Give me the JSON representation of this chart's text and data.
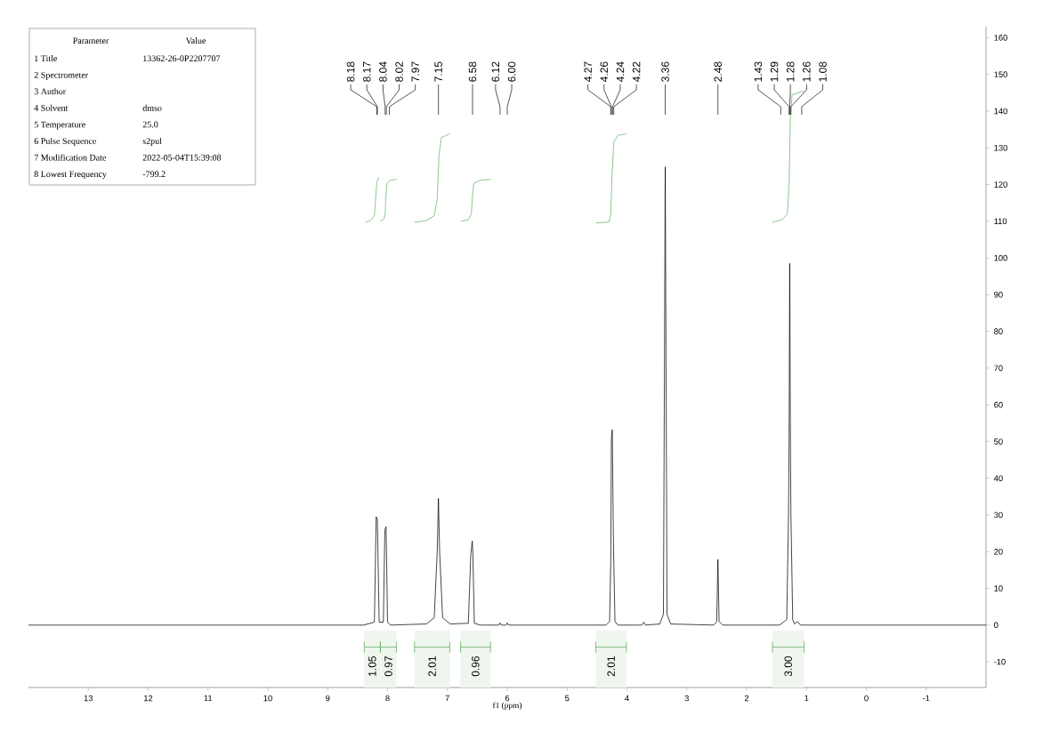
{
  "chart_data": [
    {
      "type": "other",
      "annotations": [
        "Parameter",
        "Value"
      ],
      "categories": [
        "1 Title",
        "2 Spectrometer",
        "3 Author",
        "4 Solvent",
        "5 Temperature",
        "6 Pulse Sequence",
        "7 Modification Date",
        "8 Lowest Frequency"
      ],
      "value_labels": [
        "13362-26-0P2207707",
        null,
        null,
        "dmso",
        "25.0",
        "s2pul",
        "2022-05-04T15:39:08",
        "-799.2"
      ]
    },
    {
      "type": "line",
      "xlabel": "f1 (ppm)",
      "xlim": [
        14,
        -2
      ],
      "ylim": [
        -17,
        163
      ],
      "xticks": [
        13,
        12,
        11,
        10,
        9,
        8,
        7,
        6,
        5,
        4,
        3,
        2,
        1,
        0,
        -1
      ],
      "yticks": [
        -10,
        0,
        10,
        20,
        30,
        40,
        50,
        60,
        70,
        80,
        90,
        100,
        110,
        120,
        130,
        140,
        150,
        160
      ],
      "series": [
        {
          "color": "#000000",
          "x": [
            14,
            8.4,
            8.22,
            8.19,
            8.17,
            8.14,
            8.07,
            8.045,
            8.025,
            8.0,
            7.95,
            7.35,
            7.22,
            7.17,
            7.15,
            7.13,
            7.08,
            6.95,
            6.65,
            6.61,
            6.585,
            6.575,
            6.55,
            6.45,
            6.14,
            6.12,
            6.1,
            6.02,
            6.0,
            5.98,
            4.35,
            4.29,
            4.27,
            4.26,
            4.245,
            4.225,
            4.2,
            4.15,
            3.75,
            3.72,
            3.69,
            3.45,
            3.39,
            3.36,
            3.33,
            3.27,
            2.55,
            2.5,
            2.48,
            2.46,
            2.4,
            1.45,
            1.33,
            1.3,
            1.29,
            1.28,
            1.27,
            1.26,
            1.23,
            1.2,
            1.15,
            1.1,
            -2
          ],
          "values": [
            0,
            0,
            0.8,
            29.5,
            28.8,
            0.8,
            0.8,
            26,
            26.8,
            0.8,
            0,
            0.3,
            2,
            20,
            34.5,
            20,
            2,
            0.3,
            0.5,
            19,
            22.9,
            20,
            0.5,
            0,
            0,
            0.6,
            0,
            0,
            0.6,
            0,
            0,
            1,
            17.5,
            50.4,
            53.2,
            22,
            1,
            0,
            0,
            0.8,
            0,
            0.3,
            3,
            124.8,
            3,
            0.3,
            0,
            1,
            17.9,
            1,
            0,
            0,
            1.5,
            30,
            52,
            98.5,
            54,
            30,
            1.5,
            0.3,
            1,
            0,
            0
          ]
        },
        {
          "color": "#66b366",
          "x": [
            8.37,
            8.28,
            8.22,
            8.2,
            8.18,
            8.15
          ],
          "values": [
            109.7,
            110.3,
            111.5,
            116,
            120.5,
            122.0
          ]
        },
        {
          "color": "#66b366",
          "x": [
            8.12,
            8.06,
            8.04,
            8.03,
            8.01,
            7.95,
            7.85
          ],
          "values": [
            110,
            110.6,
            112,
            116,
            120.3,
            121.2,
            121.4
          ]
        },
        {
          "color": "#66b366",
          "x": [
            7.55,
            7.35,
            7.22,
            7.17,
            7.14,
            7.1,
            6.96
          ],
          "values": [
            109.7,
            110.2,
            111.5,
            116,
            128,
            132.8,
            133.8
          ]
        },
        {
          "color": "#66b366",
          "x": [
            6.78,
            6.65,
            6.6,
            6.585,
            6.56,
            6.45,
            6.28
          ],
          "values": [
            110,
            110.4,
            112,
            116,
            120.3,
            121.2,
            121.4
          ]
        },
        {
          "color": "#66b366",
          "x": [
            4.52,
            4.3,
            4.27,
            4.25,
            4.22,
            4.15,
            4.01
          ],
          "values": [
            109.5,
            109.8,
            112,
            122,
            131.5,
            133.4,
            133.8
          ]
        },
        {
          "color": "#66b366",
          "x": [
            1.57,
            1.4,
            1.32,
            1.29,
            1.27,
            1.24,
            1.04
          ],
          "values": [
            109.7,
            110.5,
            112,
            120,
            138,
            144.5,
            145.5
          ]
        }
      ],
      "bands": [
        {
          "axis": "x",
          "from": 8.39,
          "to": 8.12,
          "label": "1.05",
          "color": "#eef6ee"
        },
        {
          "axis": "x",
          "from": 8.12,
          "to": 7.85,
          "label": "0.97",
          "color": "#eef6ee"
        },
        {
          "axis": "x",
          "from": 7.55,
          "to": 6.96,
          "label": "2.01",
          "color": "#eef6ee"
        },
        {
          "axis": "x",
          "from": 6.78,
          "to": 6.28,
          "label": "0.96",
          "color": "#eef6ee"
        },
        {
          "axis": "x",
          "from": 4.52,
          "to": 4.01,
          "label": "2.01",
          "color": "#eef6ee"
        },
        {
          "axis": "x",
          "from": 1.57,
          "to": 1.04,
          "label": "3.00",
          "color": "#eef6ee"
        }
      ],
      "annotations": [
        {
          "text": "8.18",
          "x": 8.18
        },
        {
          "text": "8.17",
          "x": 8.17
        },
        {
          "text": "8.04",
          "x": 8.04
        },
        {
          "text": "8.02",
          "x": 8.02
        },
        {
          "text": "7.97",
          "x": 7.97
        },
        {
          "text": "7.15",
          "x": 7.15
        },
        {
          "text": "6.58",
          "x": 6.58
        },
        {
          "text": "6.12",
          "x": 6.12
        },
        {
          "text": "6.00",
          "x": 6.0
        },
        {
          "text": "4.27",
          "x": 4.27
        },
        {
          "text": "4.26",
          "x": 4.26
        },
        {
          "text": "4.24",
          "x": 4.24
        },
        {
          "text": "4.22",
          "x": 4.22
        },
        {
          "text": "3.36",
          "x": 3.36
        },
        {
          "text": "2.48",
          "x": 2.48
        },
        {
          "text": "1.43",
          "x": 1.43
        },
        {
          "text": "1.29",
          "x": 1.29
        },
        {
          "text": "1.28",
          "x": 1.28
        },
        {
          "text": "1.26",
          "x": 1.26
        },
        {
          "text": "1.08",
          "x": 1.08
        }
      ]
    }
  ]
}
